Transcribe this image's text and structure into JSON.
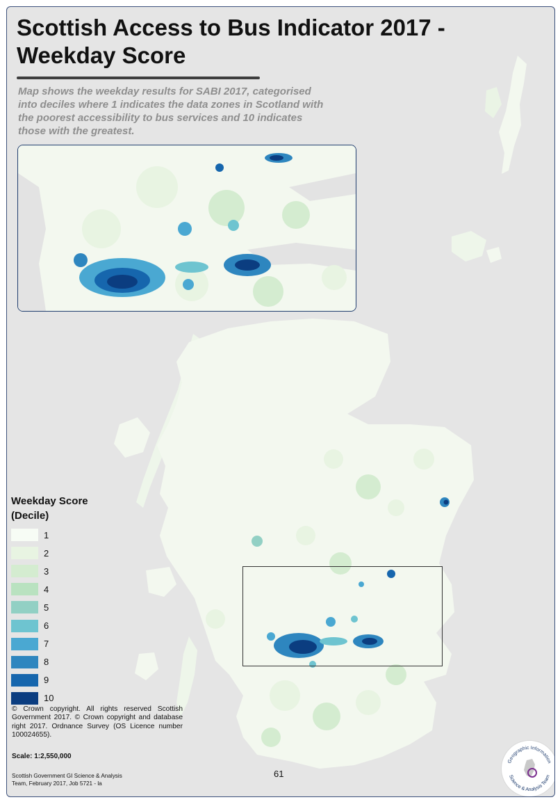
{
  "title": "Scottish Access to Bus Indicator 2017 - Weekday Score",
  "subtitle": "Map shows the weekday results for SABI 2017, categorised into deciles where 1 indicates the data zones in Scotland with the poorest accessibility to bus services and 10 indicates those with the greatest.",
  "legend": {
    "title_line1": "Weekday Score",
    "title_line2": "(Decile)",
    "items": [
      {
        "label": "1",
        "color": "#f7fcf5"
      },
      {
        "label": "2",
        "color": "#e8f4e2"
      },
      {
        "label": "3",
        "color": "#d4ecd0"
      },
      {
        "label": "4",
        "color": "#b9e2c0"
      },
      {
        "label": "5",
        "color": "#92d0c4"
      },
      {
        "label": "6",
        "color": "#6ec4d0"
      },
      {
        "label": "7",
        "color": "#4aa8d2"
      },
      {
        "label": "8",
        "color": "#2e86bf"
      },
      {
        "label": "9",
        "color": "#1666ad"
      },
      {
        "label": "10",
        "color": "#0b3d80"
      }
    ]
  },
  "copyright": "© Crown copyright. All rights reserved Scottish Government 2017. © Crown copyright and database right 2017. Ordnance Survey (OS Licence number 100024655).",
  "scale": "Scale: 1:2,550,000",
  "credit_line1": "Scottish Government GI Science & Analysis",
  "credit_line2": "Team, February 2017, Job 5721 - la",
  "page_number": "61",
  "logo": {
    "text_top": "Geographic Information",
    "text_bottom": "Science & Analysis Team"
  },
  "colors": {
    "sea": "#e5e5e5",
    "land": "#f3f8ef",
    "frame": "#3a4f7a"
  }
}
